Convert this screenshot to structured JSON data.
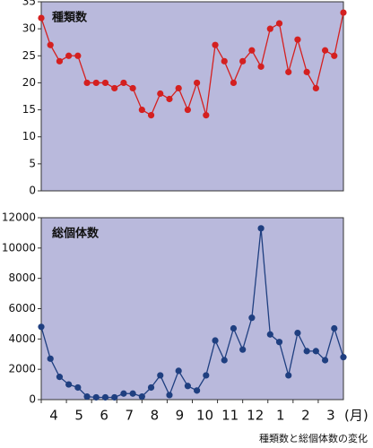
{
  "chart_data": [
    {
      "type": "line",
      "title": "種類数",
      "color": "#d42020",
      "categories": [
        null,
        null,
        null,
        null,
        null,
        null,
        null,
        null,
        null,
        null,
        null,
        null,
        null,
        null,
        null,
        null,
        null,
        null,
        null,
        null,
        null,
        null,
        null,
        null,
        null,
        null,
        null,
        null,
        null,
        null,
        null,
        null,
        null,
        null
      ],
      "values": [
        32,
        27,
        24,
        25,
        25,
        20,
        20,
        20,
        19,
        20,
        19,
        15,
        14,
        18,
        17,
        19,
        15,
        20,
        14,
        27,
        24,
        20,
        24,
        26,
        23,
        30,
        31,
        22,
        28,
        22,
        19,
        26,
        25,
        33
      ],
      "ylim": [
        0,
        35
      ],
      "yticks": [
        0,
        5,
        10,
        15,
        20,
        25,
        30,
        35
      ]
    },
    {
      "type": "line",
      "title": "総個体数",
      "color": "#1f3f80",
      "categories": [
        null,
        null,
        null,
        null,
        null,
        null,
        null,
        null,
        null,
        null,
        null,
        null,
        null,
        null,
        null,
        null,
        null,
        null,
        null,
        null,
        null,
        null,
        null,
        null,
        null,
        null,
        null,
        null,
        null,
        null,
        null,
        null,
        null,
        null
      ],
      "values": [
        4800,
        2700,
        1500,
        1000,
        800,
        200,
        150,
        150,
        150,
        400,
        400,
        200,
        800,
        1600,
        300,
        1900,
        900,
        600,
        1600,
        3900,
        2600,
        4700,
        3300,
        5400,
        11300,
        4300,
        3800,
        1600,
        4400,
        3200,
        3200,
        2600,
        4700,
        2800
      ],
      "ylim": [
        0,
        12000
      ],
      "yticks": [
        0,
        2000,
        4000,
        6000,
        8000,
        10000,
        12000
      ],
      "month_labels": [
        "4",
        "5",
        "6",
        "7",
        "8",
        "9",
        "10",
        "11",
        "12",
        "1",
        "2",
        "3"
      ],
      "month_unit": "(月)"
    }
  ],
  "caption": "種類数と総個体数の変化"
}
